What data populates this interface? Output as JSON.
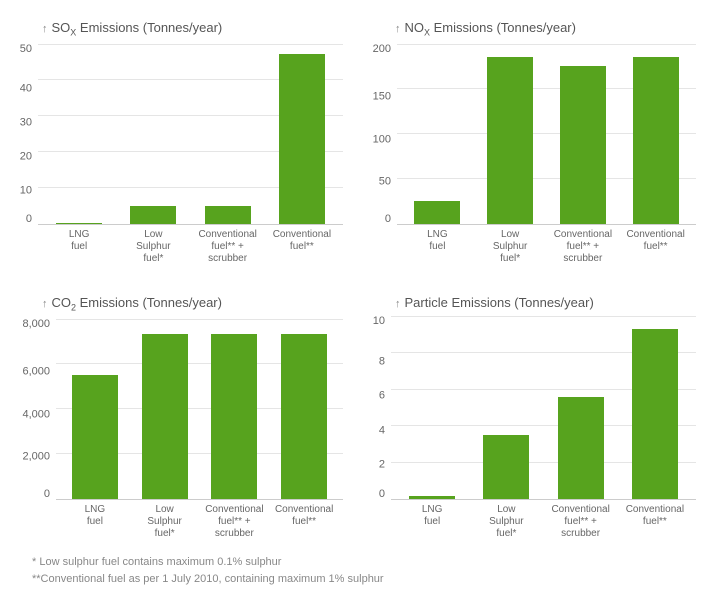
{
  "background_color": "#ffffff",
  "bar_color": "#57a31e",
  "grid_color": "#e5e5e5",
  "axis_color": "#cccccc",
  "text_color": "#555555",
  "label_fontsize": 10,
  "title_fontsize": 13,
  "categories": [
    {
      "line1": "LNG",
      "line2": "fuel",
      "line3": ""
    },
    {
      "line1": "Low",
      "line2": "Sulphur",
      "line3": "fuel*"
    },
    {
      "line1": "Conventional",
      "line2": "fuel** +",
      "line3": "scrubber"
    },
    {
      "line1": "Conventional",
      "line2": "fuel**",
      "line3": ""
    }
  ],
  "charts": [
    {
      "title_prefix": "SO",
      "title_sub": "X",
      "title_suffix": " Emissions (Tonnes/year)",
      "ymin": 0,
      "ymax": 50,
      "ytick_step": 10,
      "values": [
        0.3,
        5,
        5,
        47
      ],
      "bar_width": 0.65
    },
    {
      "title_prefix": "NO",
      "title_sub": "X",
      "title_suffix": " Emissions (Tonnes/year)",
      "ymin": 0,
      "ymax": 200,
      "ytick_step": 50,
      "values": [
        25,
        185,
        175,
        185
      ],
      "bar_width": 0.65
    },
    {
      "title_prefix": "CO",
      "title_sub": "2",
      "title_suffix": " Emissions (Tonnes/year)",
      "ymin": 0,
      "ymax": 8000,
      "ytick_step": 2000,
      "tick_format": "thousands",
      "values": [
        5500,
        7300,
        7300,
        7300
      ],
      "bar_width": 0.65
    },
    {
      "title_prefix": "Particle Emissions (Tonnes/year)",
      "title_sub": "",
      "title_suffix": "",
      "ymin": 0,
      "ymax": 10,
      "ytick_step": 2,
      "values": [
        0.15,
        3.5,
        5.6,
        9.3
      ],
      "bar_width": 0.65
    }
  ],
  "footnotes": {
    "f1": "*  Low sulphur fuel contains maximum 0.1% sulphur",
    "f2": "**Conventional fuel as per 1 July 2010, containing maximum 1% sulphur"
  }
}
